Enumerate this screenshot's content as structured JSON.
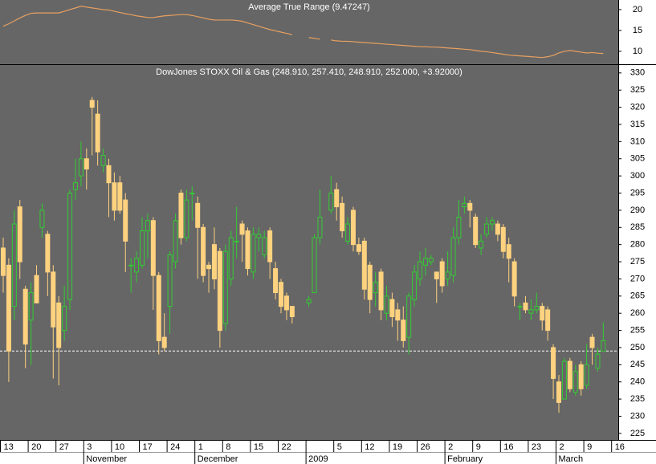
{
  "chart_data": [
    {
      "type": "line",
      "title": "Average True Range (9.47247)",
      "color": "#e8a060",
      "ylim": [
        6.9,
        22.3
      ],
      "yticks": [
        10,
        15,
        20
      ],
      "values": [
        16,
        16.6,
        17.3,
        18,
        18.6,
        19.1,
        19.2,
        19.2,
        19.2,
        19.2,
        19.2,
        19.6,
        20,
        20.4,
        20.8,
        20.6,
        20.4,
        20.2,
        20,
        19.9,
        19.6,
        19.3,
        19,
        18.8,
        18.5,
        18.3,
        18.1,
        18.1,
        18.3,
        18.5,
        18.6,
        18.7,
        18.8,
        18.8,
        18.6,
        18.3,
        18,
        17.7,
        17.5,
        17.5,
        17.5,
        17.5,
        17.4,
        17.2,
        16.8,
        16.4,
        16,
        15.6,
        15.2,
        14.9,
        14.6,
        14.3,
        14,
        null,
        null,
        13.3,
        13.1,
        12.9,
        null,
        12.7,
        12.5,
        12.4,
        12.4,
        12.3,
        12.2,
        12.1,
        12,
        11.9,
        11.8,
        11.7,
        11.6,
        11.5,
        11.4,
        11.3,
        11.2,
        11.1,
        11.1,
        11,
        11,
        10.9,
        10.8,
        10.7,
        10.6,
        10.5,
        10.4,
        10.2,
        10,
        9.9,
        9.7,
        9.5,
        9.3,
        9.1,
        9,
        8.9,
        8.8,
        8.7,
        8.6,
        8.5,
        8.7,
        9,
        9.6,
        10,
        10.2,
        10,
        9.8,
        9.6,
        9.7,
        9.55,
        9.47247,
        null,
        null
      ]
    },
    {
      "type": "candlestick",
      "title": "DowJones STOXX Oil & Gas (248.910, 257.410, 248.910, 252.000, +3.92000)",
      "up_color": "#33cc33",
      "down_color": "#ffd27f",
      "reference_line": 249,
      "reference_color": "#ffffff",
      "ylim": [
        223.1,
        332.3
      ],
      "yticks": [
        225,
        230,
        235,
        240,
        245,
        250,
        255,
        260,
        265,
        270,
        275,
        280,
        285,
        290,
        295,
        300,
        305,
        310,
        315,
        320,
        325,
        330
      ],
      "categories": [
        "13",
        null,
        null,
        null,
        null,
        "20",
        null,
        null,
        null,
        null,
        "27",
        null,
        null,
        null,
        null,
        "3",
        null,
        null,
        null,
        null,
        "10",
        null,
        null,
        null,
        null,
        "17",
        null,
        null,
        null,
        null,
        "24",
        null,
        null,
        null,
        null,
        "1",
        null,
        null,
        null,
        null,
        "8",
        null,
        null,
        null,
        null,
        "15",
        null,
        null,
        null,
        null,
        "22",
        null,
        null,
        null,
        null,
        null,
        null,
        null,
        null,
        null,
        "5",
        null,
        null,
        null,
        null,
        "12",
        null,
        null,
        null,
        null,
        "19",
        null,
        null,
        null,
        null,
        "26",
        null,
        null,
        null,
        null,
        "2",
        null,
        null,
        null,
        null,
        "9",
        null,
        null,
        null,
        null,
        "16",
        null,
        null,
        null,
        null,
        "23",
        null,
        null,
        null,
        null,
        "2",
        null,
        null,
        null,
        null,
        "9",
        null,
        null,
        null,
        null,
        "16"
      ],
      "month_labels": [
        null,
        null,
        null,
        null,
        null,
        null,
        null,
        null,
        null,
        null,
        null,
        null,
        null,
        null,
        null,
        "November",
        null,
        null,
        null,
        null,
        null,
        null,
        null,
        null,
        null,
        null,
        null,
        null,
        null,
        null,
        null,
        null,
        null,
        null,
        null,
        "December",
        null,
        null,
        null,
        null,
        null,
        null,
        null,
        null,
        null,
        null,
        null,
        null,
        null,
        null,
        null,
        null,
        null,
        null,
        null,
        "2009",
        null,
        null,
        null,
        null,
        null,
        null,
        null,
        null,
        null,
        null,
        null,
        null,
        null,
        null,
        null,
        null,
        null,
        null,
        null,
        null,
        null,
        null,
        null,
        null,
        "February",
        null,
        null,
        null,
        null,
        null,
        null,
        null,
        null,
        null,
        null,
        null,
        null,
        null,
        null,
        null,
        null,
        null,
        null,
        null,
        "March",
        null,
        null,
        null,
        null,
        null,
        null,
        null,
        null,
        null,
        null
      ],
      "open": [
        279,
        274,
        262,
        291,
        267,
        258,
        271,
        285,
        283,
        272,
        263,
        255,
        264,
        296,
        300,
        305,
        322,
        318,
        303,
        303,
        298,
        298,
        293,
        274,
        272,
        274,
        284,
        287,
        271,
        253,
        262,
        275,
        295,
        282,
        295,
        292,
        285,
        274,
        280,
        278,
        257,
        270,
        281,
        286,
        284,
        272,
        282,
        277,
        284,
        273,
        269,
        265,
        262,
        null,
        null,
        263,
        266,
        282,
        null,
        290,
        296,
        292,
        281,
        290,
        280,
        281,
        274,
        266,
        272,
        260,
        264,
        261,
        258,
        253,
        264,
        270,
        274,
        275,
        272,
        275,
        270,
        271,
        282,
        291,
        292,
        288,
        279,
        283,
        286,
        286,
        285,
        280,
        275,
        262,
        263,
        260,
        261,
        262,
        261,
        250,
        240,
        235,
        246,
        237,
        245,
        239,
        253,
        244,
        248.91,
        null,
        null
      ],
      "high": [
        282,
        276,
        290,
        293,
        268,
        269,
        274,
        292,
        284,
        274,
        265,
        268,
        296,
        305,
        310,
        308,
        323,
        322,
        308,
        305,
        301,
        300,
        295,
        276,
        278,
        288,
        289,
        288,
        272,
        260,
        278,
        289,
        296,
        296,
        297,
        294,
        286,
        275,
        285,
        279,
        280,
        284,
        291,
        287,
        285,
        285,
        285,
        284,
        285,
        275,
        270,
        266,
        262,
        null,
        null,
        265,
        283,
        296,
        null,
        300,
        298,
        294,
        288,
        291,
        282,
        282,
        275,
        272,
        273,
        268,
        266,
        263,
        262,
        266,
        274,
        278,
        279,
        277,
        272,
        276,
        278,
        285,
        293,
        294,
        293,
        289,
        283,
        288,
        288,
        287,
        286,
        282,
        276,
        263,
        265,
        264,
        266,
        263,
        262,
        251,
        242,
        247,
        247,
        245,
        246,
        251,
        254,
        250,
        257.41,
        null,
        null
      ],
      "low": [
        266,
        240,
        258,
        270,
        244,
        245,
        263,
        282,
        265,
        241,
        239,
        252,
        261,
        293,
        297,
        296,
        306,
        303,
        301,
        288,
        287,
        289,
        272,
        266,
        269,
        273,
        276,
        261,
        248,
        249,
        254,
        273,
        280,
        281,
        287,
        270,
        269,
        266,
        267,
        250,
        255,
        268,
        276,
        275,
        271,
        270,
        278,
        276,
        270,
        264,
        260,
        258,
        257,
        null,
        null,
        262,
        266,
        280,
        null,
        289,
        287,
        282,
        280,
        278,
        277,
        264,
        260,
        262,
        258,
        258,
        256,
        252,
        250,
        248,
        262,
        268,
        271,
        274,
        263,
        266,
        268,
        269,
        280,
        289,
        285,
        279,
        277,
        282,
        284,
        281,
        276,
        269,
        262,
        258,
        260,
        258,
        260,
        255,
        252,
        235,
        231,
        235,
        237,
        236,
        236,
        238,
        245,
        243,
        248.91,
        null,
        null
      ],
      "close": [
        271,
        249,
        286,
        275,
        251,
        266,
        263,
        290,
        272,
        256,
        250,
        262,
        295,
        298,
        305,
        302,
        320,
        307,
        306,
        298,
        290,
        290,
        281,
        274,
        276,
        284,
        287,
        271,
        252,
        250,
        277,
        287,
        282,
        293,
        295,
        285,
        271,
        273,
        270,
        255,
        278,
        282,
        281,
        283,
        273,
        283,
        283,
        282,
        275,
        266,
        262,
        261,
        259,
        null,
        null,
        264,
        282,
        288,
        null,
        295,
        291,
        284,
        286,
        280,
        278,
        267,
        264,
        269,
        261,
        265,
        259,
        258,
        252,
        265,
        272,
        275,
        276,
        276,
        270,
        268,
        272,
        282,
        288,
        292,
        290,
        280,
        281,
        286,
        287,
        283,
        278,
        276,
        265,
        262,
        261,
        261,
        262,
        258,
        255,
        241,
        234,
        246,
        238,
        243,
        238,
        245,
        250,
        248.08,
        252,
        null,
        null
      ]
    }
  ]
}
